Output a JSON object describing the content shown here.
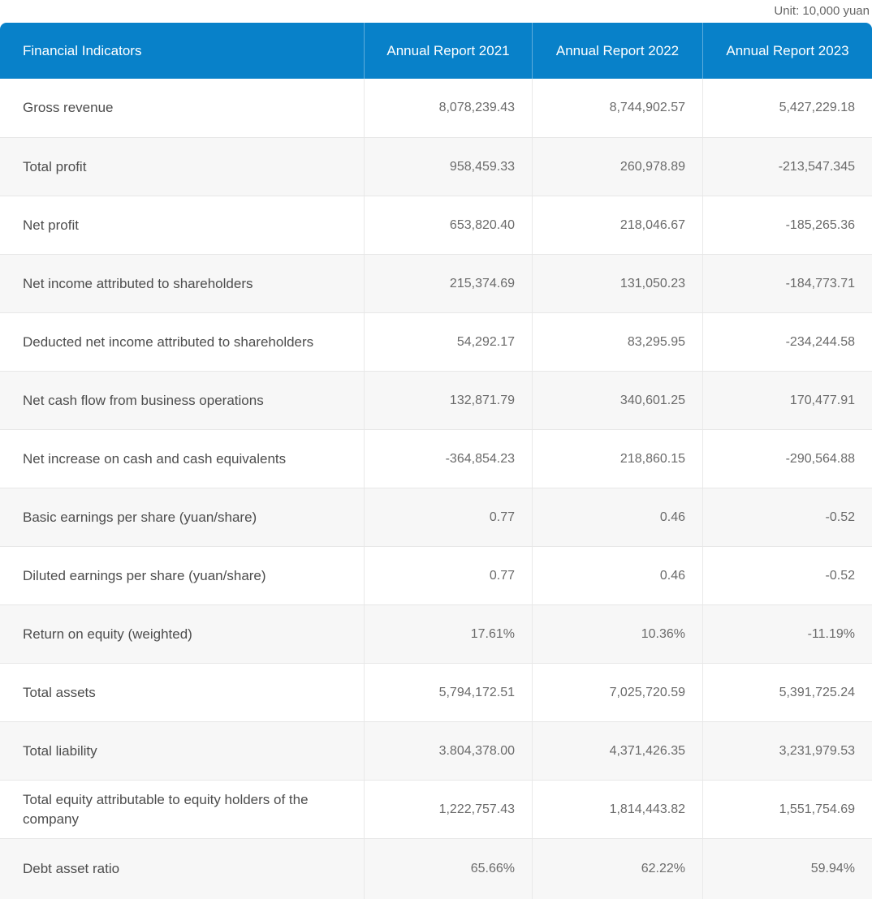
{
  "colors": {
    "header_bg": "#0881c9",
    "header_text": "#ffffff",
    "row_bg": "#ffffff",
    "row_alt_bg": "#f7f7f7",
    "border": "#e7e7e7",
    "label_text": "#4d4d4d",
    "value_text": "#6a6a6a",
    "unit_note_text": "#666666"
  },
  "chart_data": {
    "type": "table",
    "unit_note": "Unit: 10,000 yuan",
    "columns": [
      "Financial Indicators",
      "Annual Report 2021",
      "Annual Report 2022",
      "Annual Report 2023"
    ],
    "rows": [
      {
        "label": "Gross revenue",
        "values": [
          "8,078,239.43",
          "8,744,902.57",
          "5,427,229.18"
        ]
      },
      {
        "label": "Total profit",
        "values": [
          "958,459.33",
          "260,978.89",
          "-213,547.345"
        ]
      },
      {
        "label": "Net profit",
        "values": [
          "653,820.40",
          "218,046.67",
          "-185,265.36"
        ]
      },
      {
        "label": "Net income attributed to shareholders",
        "values": [
          "215,374.69",
          "131,050.23",
          "-184,773.71"
        ]
      },
      {
        "label": "Deducted net income attributed to shareholders",
        "values": [
          "54,292.17",
          "83,295.95",
          "-234,244.58"
        ]
      },
      {
        "label": "Net cash flow from business operations",
        "values": [
          "132,871.79",
          "340,601.25",
          "170,477.91"
        ]
      },
      {
        "label": "Net increase on cash and cash equivalents",
        "values": [
          "-364,854.23",
          "218,860.15",
          "-290,564.88"
        ]
      },
      {
        "label": "Basic earnings per share (yuan/share)",
        "values": [
          "0.77",
          "0.46",
          "-0.52"
        ]
      },
      {
        "label": "Diluted earnings per share (yuan/share)",
        "values": [
          "0.77",
          "0.46",
          "-0.52"
        ]
      },
      {
        "label": "Return on equity (weighted)",
        "values": [
          "17.61%",
          "10.36%",
          "-11.19%"
        ]
      },
      {
        "label": "Total assets",
        "values": [
          "5,794,172.51",
          "7,025,720.59",
          "5,391,725.24"
        ]
      },
      {
        "label": "Total liability",
        "values": [
          "3.804,378.00",
          "4,371,426.35",
          "3,231,979.53"
        ]
      },
      {
        "label": "Total equity attributable to equity holders of the company",
        "values": [
          "1,222,757.43",
          "1,814,443.82",
          "1,551,754.69"
        ]
      },
      {
        "label": "Debt asset ratio",
        "values": [
          "65.66%",
          "62.22%",
          "59.94%"
        ]
      }
    ]
  }
}
